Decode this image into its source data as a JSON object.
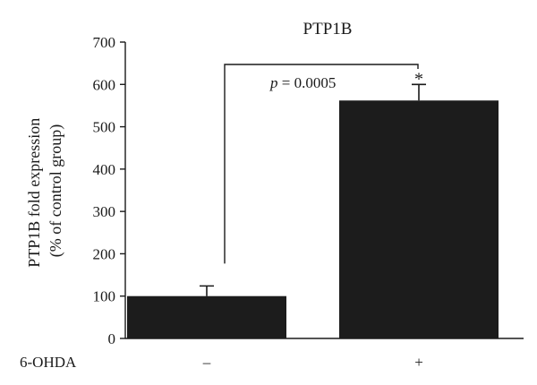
{
  "chart_data": {
    "type": "bar",
    "title": "PTP1B",
    "ylabel_line1": "PTP1B fold expression",
    "ylabel_line2": "(% of control group)",
    "categories": [
      "–",
      "+"
    ],
    "condition_label": "6-OHDA",
    "values": [
      100,
      562
    ],
    "errors": [
      24,
      38
    ],
    "yticks": [
      0,
      100,
      200,
      300,
      400,
      500,
      600,
      700
    ],
    "ylim": [
      0,
      700
    ],
    "bar_color": "#1c1c1c",
    "significance": {
      "p_symbol": "p",
      "p_text": " = 0.0005",
      "star": "*",
      "star_on_category": 1
    }
  }
}
